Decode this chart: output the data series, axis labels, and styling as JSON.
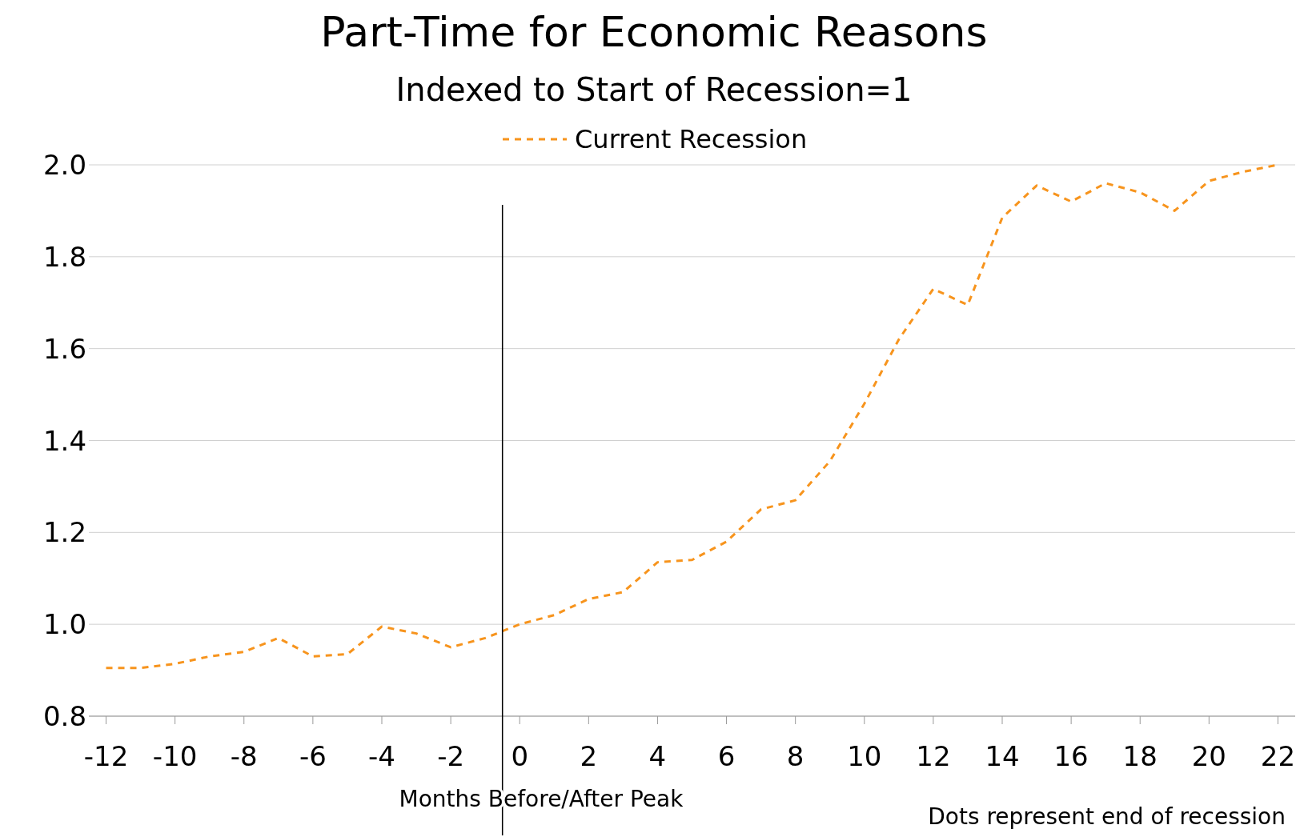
{
  "chart_data": {
    "type": "line",
    "title": "Part-Time for Economic Reasons",
    "subtitle": "Indexed to Start of Recession=1",
    "xlabel": "Months Before/After Peak",
    "annotations": [
      "Dots represent end of recession"
    ],
    "x": [
      -12,
      -11,
      -10,
      -9,
      -8,
      -7,
      -6,
      -5,
      -4,
      -3,
      -2,
      -1,
      0,
      1,
      2,
      3,
      4,
      5,
      6,
      7,
      8,
      9,
      10,
      11,
      12,
      13,
      14,
      15,
      16,
      17,
      18,
      19,
      20,
      21,
      22
    ],
    "series": [
      {
        "name": "Current Recession",
        "color": "#f7941d",
        "values": [
          0.905,
          0.905,
          0.914,
          0.93,
          0.94,
          0.97,
          0.93,
          0.935,
          0.995,
          0.98,
          0.95,
          0.97,
          1.0,
          1.02,
          1.055,
          1.07,
          1.135,
          1.14,
          1.18,
          1.25,
          1.27,
          1.355,
          1.48,
          1.62,
          1.73,
          1.695,
          1.885,
          1.955,
          1.92,
          1.96,
          1.94,
          1.9,
          1.965,
          1.985,
          2.0
        ]
      }
    ],
    "xlim": [
      -12.5,
      22.5
    ],
    "xticks": [
      -12,
      -10,
      -8,
      -6,
      -4,
      -2,
      0,
      2,
      4,
      6,
      8,
      10,
      12,
      14,
      16,
      18,
      20,
      22
    ],
    "ylim": [
      0.8,
      2.0
    ],
    "yticks": [
      {
        "value": 0.8,
        "label": "0.8"
      },
      {
        "value": 1.0,
        "label": "1.0"
      },
      {
        "value": 1.2,
        "label": "1.2"
      },
      {
        "value": 1.4,
        "label": "1.4"
      },
      {
        "value": 1.6,
        "label": "1.6"
      },
      {
        "value": 1.8,
        "label": "1.8"
      },
      {
        "value": 2.0,
        "label": "2.0"
      }
    ],
    "ref_lines": [
      {
        "axis": "x",
        "value": -0.5,
        "color": "#000000"
      }
    ],
    "grid": "y",
    "legend": "top",
    "line_style": "dashed",
    "marker": "none"
  }
}
